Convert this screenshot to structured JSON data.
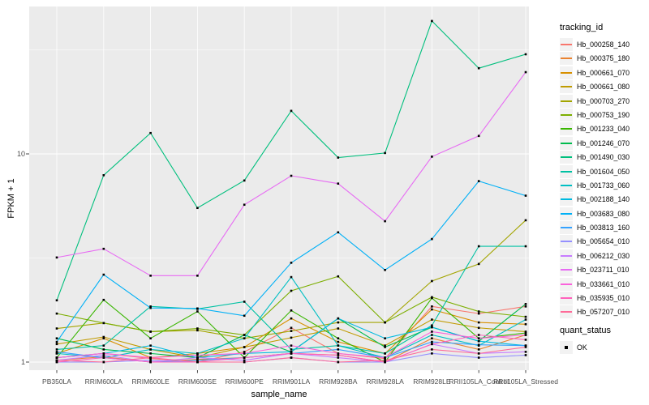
{
  "figure": {
    "y_axis_title": "FPKM + 1",
    "x_axis_title": "sample_name",
    "legend_title": "tracking_id",
    "quant_legend": {
      "title": "quant_status",
      "items": [
        "OK"
      ]
    }
  },
  "colors": {
    "panel_bg": "#EBEBEB",
    "grid": "#FFFFFF",
    "tick_text": "#4D4D4D",
    "tick_mark": "#333333",
    "legend_key_bg": "#F2F2F2",
    "point": "#000000"
  },
  "chart_data": {
    "type": "line",
    "title": "",
    "xlabel": "sample_name",
    "ylabel": "FPKM + 1",
    "y_scale": "log10",
    "ylim": [
      1,
      51
    ],
    "grid": true,
    "legend_position": "right",
    "marker": "square",
    "marker_color": "#000000",
    "yticks": [
      {
        "label": "10",
        "value": 10
      },
      {
        "label": "1",
        "value": 1
      }
    ],
    "y_minor": [
      3.162,
      31.623
    ],
    "categories": [
      "PB350LA",
      "RRIM600LA",
      "RRIM600LE",
      "RRIM600SE",
      "RRIM600PE",
      "RRIM901LA",
      "RRIM928BA",
      "RRIM928LA",
      "RRIM928LE",
      "RRII105LA_Control",
      "RRII105LA_Stressed"
    ],
    "series": [
      {
        "name": "Hb_000258_140",
        "color": "#F8766D",
        "values": [
          1.05,
          1.1,
          1.04,
          1.0,
          1.12,
          1.46,
          1.1,
          1.04,
          1.85,
          1.71,
          1.85
        ]
      },
      {
        "name": "Hb_000375_180",
        "color": "#EA8331",
        "values": [
          1.02,
          1.06,
          1.0,
          1.03,
          1.05,
          1.1,
          1.08,
          1.0,
          1.3,
          1.15,
          1.35
        ]
      },
      {
        "name": "Hb_000661_070",
        "color": "#D89000",
        "values": [
          1.1,
          1.3,
          1.05,
          1.1,
          1.18,
          1.62,
          1.25,
          1.1,
          1.79,
          1.55,
          1.52
        ]
      },
      {
        "name": "Hb_000661_080",
        "color": "#C09B00",
        "values": [
          1.22,
          1.32,
          1.15,
          1.05,
          1.18,
          1.31,
          1.45,
          1.2,
          1.6,
          1.46,
          1.4
        ]
      },
      {
        "name": "Hb_000703_270",
        "color": "#A3A500",
        "values": [
          1.45,
          1.54,
          1.4,
          1.42,
          1.3,
          1.41,
          1.55,
          1.55,
          2.45,
          2.96,
          4.8
        ]
      },
      {
        "name": "Hb_000753_190",
        "color": "#7CAE00",
        "values": [
          1.71,
          1.54,
          1.4,
          1.45,
          1.35,
          2.2,
          2.58,
          1.55,
          2.05,
          1.75,
          1.65
        ]
      },
      {
        "name": "Hb_001233_040",
        "color": "#39B600",
        "values": [
          1.05,
          1.99,
          1.3,
          1.75,
          1.05,
          1.77,
          1.3,
          1.0,
          2.03,
          1.3,
          1.38
        ]
      },
      {
        "name": "Hb_001246_070",
        "color": "#00BB4E",
        "values": [
          1.3,
          1.15,
          1.1,
          1.05,
          1.35,
          1.12,
          1.62,
          1.18,
          1.47,
          1.26,
          1.9
        ]
      },
      {
        "name": "Hb_001490_030",
        "color": "#00BF7D",
        "values": [
          1.98,
          7.9,
          12.6,
          5.5,
          7.45,
          16.1,
          9.6,
          10.1,
          43.5,
          25.8,
          30.1
        ]
      },
      {
        "name": "Hb_001604_050",
        "color": "#00C1A3",
        "values": [
          1.15,
          1.2,
          1.85,
          1.8,
          1.95,
          1.15,
          1.2,
          1.1,
          1.5,
          3.6,
          3.6
        ]
      },
      {
        "name": "Hb_001733_060",
        "color": "#00BFC4",
        "values": [
          1.1,
          1.05,
          1.15,
          1.1,
          1.3,
          2.56,
          1.2,
          1.05,
          1.35,
          1.2,
          1.6
        ]
      },
      {
        "name": "Hb_002188_140",
        "color": "#00BAE0",
        "values": [
          1.05,
          1.1,
          1.2,
          1.05,
          1.1,
          1.12,
          1.62,
          1.3,
          1.47,
          1.26,
          1.2
        ]
      },
      {
        "name": "Hb_003683_080",
        "color": "#00B0F6",
        "values": [
          1.25,
          2.63,
          1.82,
          1.81,
          1.67,
          3.0,
          4.2,
          2.77,
          3.9,
          7.4,
          6.3
        ]
      },
      {
        "name": "Hb_003813_160",
        "color": "#35A2FF",
        "values": [
          1.12,
          1.05,
          1.0,
          1.02,
          1.05,
          1.1,
          1.15,
          1.05,
          1.25,
          1.21,
          1.2
        ]
      },
      {
        "name": "Hb_005654_010",
        "color": "#9590FF",
        "values": [
          1.0,
          1.0,
          1.02,
          1.0,
          1.0,
          1.05,
          1.0,
          1.0,
          1.1,
          1.05,
          1.08
        ]
      },
      {
        "name": "Hb_006212_030",
        "color": "#C77CFF",
        "values": [
          1.02,
          1.08,
          1.0,
          1.05,
          1.02,
          1.1,
          1.05,
          1.0,
          1.22,
          1.1,
          1.12
        ]
      },
      {
        "name": "Hb_023711_010",
        "color": "#E76BF3",
        "values": [
          3.18,
          3.5,
          2.6,
          2.6,
          5.7,
          7.85,
          7.2,
          4.75,
          9.7,
          12.2,
          24.7
        ]
      },
      {
        "name": "Hb_033661_010",
        "color": "#FA62DB",
        "values": [
          1.05,
          1.1,
          1.05,
          1.08,
          1.1,
          1.2,
          1.1,
          1.05,
          1.4,
          1.3,
          1.35
        ]
      },
      {
        "name": "Hb_035935_010",
        "color": "#FF62BC",
        "values": [
          1.0,
          1.05,
          1.0,
          1.0,
          1.05,
          1.1,
          1.08,
          1.0,
          1.22,
          1.35,
          1.28
        ]
      },
      {
        "name": "Hb_057207_010",
        "color": "#FF6A98",
        "values": [
          1.02,
          1.0,
          1.05,
          1.0,
          1.0,
          1.05,
          1.0,
          1.02,
          1.15,
          1.1,
          1.18
        ]
      }
    ]
  }
}
